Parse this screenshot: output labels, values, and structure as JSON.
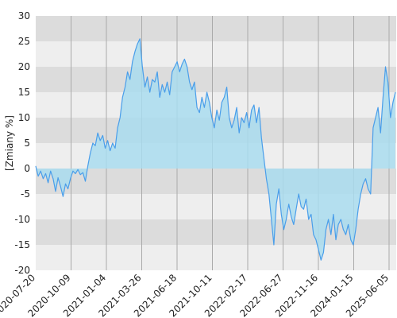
{
  "chart_data": {
    "type": "area",
    "title": "",
    "xlabel": "",
    "ylabel": "[Zmiany %]",
    "ylim": [
      -20,
      30
    ],
    "y_ticks": [
      30,
      25,
      20,
      15,
      10,
      5,
      0,
      -5,
      -10,
      -15,
      -20
    ],
    "x_tick_labels": [
      "2020-07-20",
      "2020-10-09",
      "2021-01-04",
      "2021-03-26",
      "2021-06-18",
      "2021-10-11",
      "2022-02-17",
      "2022-06-27",
      "2022-11-16",
      "2024-01-15",
      "2025-06-05"
    ],
    "grid": true,
    "legend": "none",
    "colors": {
      "line": "#4a9eea",
      "fill": "#a9dcee",
      "band_dark": "#dcdcdc",
      "band_light": "#eeeeee",
      "vgrid": "#aaaaaa"
    },
    "series": [
      {
        "values": [
          0.5,
          -1.5,
          -0.5,
          -2.0,
          -1.0,
          -2.8,
          -0.5,
          -2.0,
          -4.5,
          -1.8,
          -3.5,
          -5.5,
          -3.0,
          -4.0,
          -2.0,
          -0.5,
          -1.0,
          -0.2,
          -1.2,
          -0.8,
          -2.5,
          0.5,
          3.0,
          5.0,
          4.5,
          7.0,
          5.5,
          6.5,
          4.0,
          5.5,
          3.5,
          5.0,
          4.0,
          8.0,
          10.0,
          14.0,
          16.0,
          19.0,
          17.5,
          21.0,
          23.0,
          24.5,
          25.5,
          20.0,
          16.0,
          18.0,
          15.0,
          17.5,
          17.0,
          19.0,
          14.0,
          16.5,
          15.0,
          17.0,
          14.5,
          19.0,
          20.0,
          21.0,
          19.0,
          20.5,
          21.5,
          20.0,
          17.0,
          15.5,
          17.0,
          12.0,
          11.0,
          14.0,
          12.0,
          15.0,
          13.0,
          10.0,
          8.0,
          11.5,
          9.5,
          13.0,
          14.0,
          16.0,
          10.0,
          8.0,
          9.5,
          12.0,
          7.0,
          10.0,
          9.0,
          11.0,
          8.0,
          11.5,
          12.5,
          9.0,
          12.0,
          6.0,
          2.0,
          -2.0,
          -5.0,
          -10.0,
          -15.0,
          -7.0,
          -4.0,
          -9.0,
          -12.0,
          -10.0,
          -7.0,
          -9.5,
          -11.0,
          -8.0,
          -5.0,
          -7.5,
          -8.0,
          -6.0,
          -10.0,
          -9.0,
          -13.0,
          -14.0,
          -16.0,
          -18.0,
          -16.5,
          -12.0,
          -10.0,
          -13.0,
          -9.0,
          -14.0,
          -11.0,
          -10.0,
          -12.0,
          -13.0,
          -11.0,
          -14.0,
          -15.0,
          -12.0,
          -8.0,
          -5.0,
          -3.0,
          -2.0,
          -4.0,
          -5.0,
          8.0,
          10.0,
          12.0,
          7.0,
          14.0,
          20.0,
          17.0,
          10.0,
          13.0,
          15.0
        ]
      }
    ]
  }
}
